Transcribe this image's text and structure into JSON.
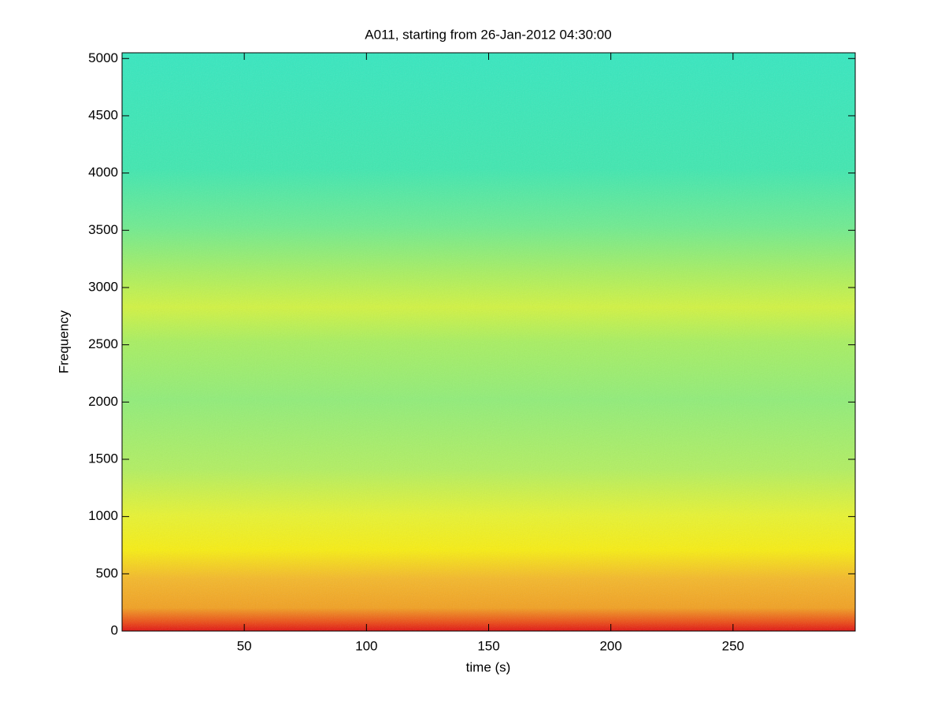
{
  "chart_data": {
    "type": "spectrogram",
    "title": "A011, starting from 26-Jan-2012 04:30:00",
    "x_label": "time (s)",
    "y_label": "Frequency",
    "xlim": [
      0,
      300
    ],
    "xticks": [
      50,
      100,
      150,
      200,
      250
    ],
    "ylim": [
      0,
      5050
    ],
    "yticks": [
      0,
      500,
      1000,
      1500,
      2000,
      2500,
      3000,
      3500,
      4000,
      4500,
      5000
    ]
  }
}
